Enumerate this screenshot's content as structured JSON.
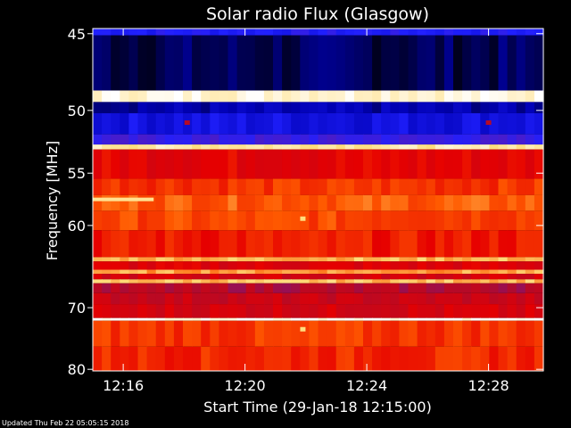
{
  "chart_data": {
    "type": "heatmap",
    "title": "Solar radio Flux (Glasgow)",
    "xlabel": "Start Time (29-Jan-18 12:15:00)",
    "ylabel": "Frequency [MHz]",
    "x_unit": "minutes after 12:15:00",
    "xlim": [
      0,
      14.8
    ],
    "ylim": [
      44.7,
      80.3
    ],
    "y_scale": "reciprocal",
    "y_inverted": true,
    "x_ticks": [
      {
        "value": 1,
        "label": "12:16"
      },
      {
        "value": 5,
        "label": "12:20"
      },
      {
        "value": 9,
        "label": "12:24"
      },
      {
        "value": 13,
        "label": "12:28"
      }
    ],
    "y_ticks": [
      {
        "value": 45,
        "label": "45"
      },
      {
        "value": 50,
        "label": "50"
      },
      {
        "value": 55,
        "label": "55"
      },
      {
        "value": 60,
        "label": "60"
      },
      {
        "value": 70,
        "label": "70"
      },
      {
        "value": 80,
        "label": "80"
      }
    ],
    "frequency_bands": [
      {
        "from": 44.7,
        "to": 45.1,
        "level": 0.25
      },
      {
        "from": 45.1,
        "to": 48.6,
        "level": 0.06
      },
      {
        "from": 48.6,
        "to": 49.4,
        "level": 0.97
      },
      {
        "from": 49.4,
        "to": 50.2,
        "level": 0.12
      },
      {
        "from": 50.2,
        "to": 51.8,
        "level": 0.2
      },
      {
        "from": 51.8,
        "to": 52.6,
        "level": 0.3
      },
      {
        "from": 52.6,
        "to": 53.0,
        "level": 0.92
      },
      {
        "from": 53.0,
        "to": 55.5,
        "level": 0.62
      },
      {
        "from": 55.5,
        "to": 57.0,
        "level": 0.7
      },
      {
        "from": 57.0,
        "to": 58.5,
        "level": 0.75
      },
      {
        "from": 58.5,
        "to": 60.5,
        "level": 0.72
      },
      {
        "from": 60.5,
        "to": 63.5,
        "level": 0.66
      },
      {
        "from": 63.5,
        "to": 64.0,
        "level": 0.84
      },
      {
        "from": 64.0,
        "to": 65.0,
        "level": 0.6
      },
      {
        "from": 65.0,
        "to": 65.5,
        "level": 0.82
      },
      {
        "from": 65.5,
        "to": 66.2,
        "level": 0.58
      },
      {
        "from": 66.2,
        "to": 66.7,
        "level": 0.85
      },
      {
        "from": 66.7,
        "to": 68.0,
        "level": 0.5
      },
      {
        "from": 68.0,
        "to": 69.5,
        "level": 0.55
      },
      {
        "from": 69.5,
        "to": 71.5,
        "level": 0.58
      },
      {
        "from": 71.5,
        "to": 71.9,
        "level": 0.99
      },
      {
        "from": 71.9,
        "to": 76.0,
        "level": 0.7
      },
      {
        "from": 76.0,
        "to": 80.3,
        "level": 0.68
      }
    ],
    "features": [
      {
        "type": "segment",
        "freq": 57.4,
        "t_start": 0,
        "t_end": 2.0,
        "level": 0.9
      },
      {
        "type": "spot",
        "freq": 59.3,
        "t": 6.9,
        "level": 0.88
      },
      {
        "type": "spot",
        "freq": 73.2,
        "t": 6.9,
        "level": 0.88
      },
      {
        "type": "spot",
        "freq": 50.9,
        "t": 3.1,
        "level": 0.5
      },
      {
        "type": "spot",
        "freq": 50.9,
        "t": 13.0,
        "level": 0.5
      }
    ],
    "colormap": [
      "#000000",
      "#0000b4",
      "#2020ff",
      "#5a1ab4",
      "#b40a28",
      "#e60000",
      "#ff5a00",
      "#ffdc78",
      "#ffffff"
    ]
  },
  "footer": {
    "updated": "Updated Thu Feb 22 05:05:15 2018"
  }
}
